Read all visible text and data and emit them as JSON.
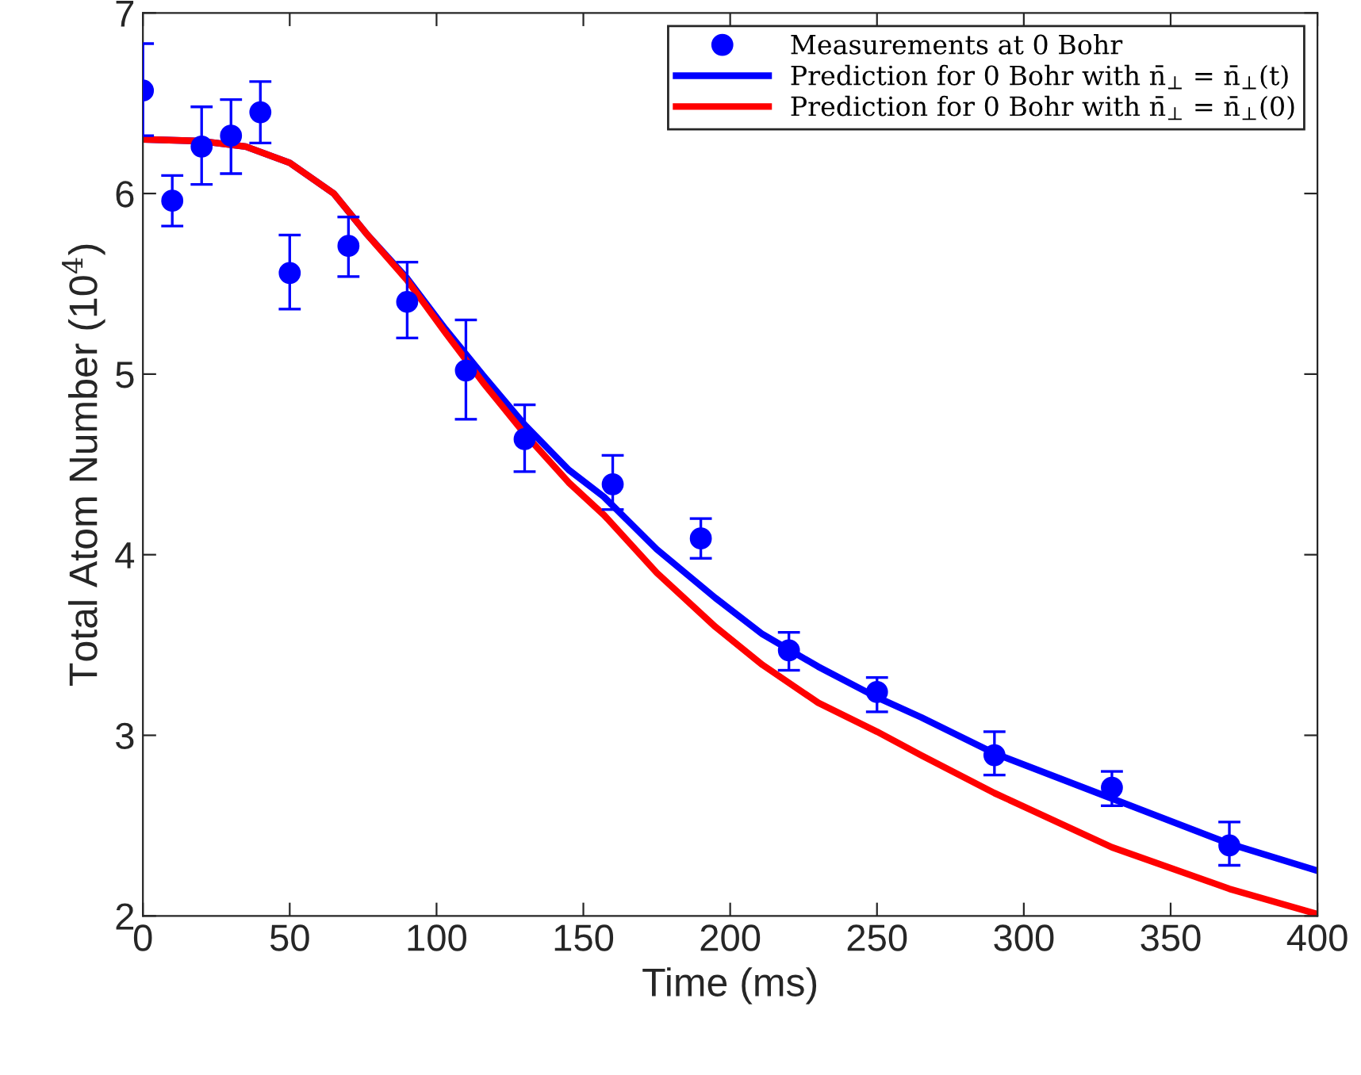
{
  "chart_data": {
    "type": "line",
    "xlabel": "Time (ms)",
    "ylabel": "Total Atom Number (10$^{4}$)",
    "xlim": [
      0,
      400
    ],
    "ylim": [
      2,
      7
    ],
    "xticks": [
      0,
      50,
      100,
      150,
      200,
      250,
      300,
      350,
      400
    ],
    "yticks": [
      2,
      3,
      4,
      5,
      6,
      7
    ],
    "grid": false,
    "legend": "top right",
    "series": [
      {
        "name": "Measurements at 0 Bohr",
        "type": "scatter",
        "marker": "circle",
        "color": "#0000ff",
        "x": [
          0,
          10,
          20,
          30,
          40,
          50,
          70,
          90,
          110,
          130,
          160,
          190,
          220,
          250,
          290,
          330,
          370
        ],
        "values": [
          6.57,
          5.96,
          6.26,
          6.32,
          6.45,
          5.56,
          5.71,
          5.4,
          5.02,
          4.64,
          4.39,
          4.09,
          3.47,
          3.24,
          2.89,
          2.71,
          2.39
        ],
        "errors": [
          [
            6.32,
            6.83
          ],
          [
            5.82,
            6.1
          ],
          [
            6.05,
            6.48
          ],
          [
            6.11,
            6.52
          ],
          [
            6.28,
            6.62
          ],
          [
            5.36,
            5.77
          ],
          [
            5.54,
            5.87
          ],
          [
            5.2,
            5.62
          ],
          [
            4.75,
            5.3
          ],
          [
            4.46,
            4.83
          ],
          [
            4.25,
            4.55
          ],
          [
            3.98,
            4.2
          ],
          [
            3.36,
            3.57
          ],
          [
            3.13,
            3.32
          ],
          [
            2.78,
            3.02
          ],
          [
            2.61,
            2.8
          ],
          [
            2.28,
            2.52
          ]
        ]
      },
      {
        "name": "Prediction for 0 Bohr with n̄$_{⊥}$ = n̄$_{⊥}$(t)",
        "line_style": "solid",
        "color": "#0000ff",
        "x": [
          0,
          20,
          35,
          50,
          65,
          76,
          90,
          103,
          116,
          130,
          145,
          157,
          175,
          195,
          211,
          230,
          250,
          265,
          290,
          330,
          370,
          400
        ],
        "values": [
          6.3,
          6.29,
          6.26,
          6.17,
          6.0,
          5.78,
          5.53,
          5.25,
          4.99,
          4.72,
          4.47,
          4.32,
          4.03,
          3.76,
          3.56,
          3.38,
          3.21,
          3.1,
          2.9,
          2.65,
          2.4,
          2.25
        ]
      },
      {
        "name": "Prediction for 0 Bohr with n̄$_{⊥}$ = n̄$_{⊥}$(0)",
        "line_style": "solid",
        "color": "#ff0000",
        "x": [
          0,
          20,
          35,
          50,
          65,
          76,
          90,
          103,
          116,
          130,
          145,
          157,
          175,
          195,
          211,
          230,
          250,
          265,
          290,
          330,
          370,
          400
        ],
        "values": [
          6.3,
          6.29,
          6.26,
          6.17,
          6.0,
          5.78,
          5.52,
          5.23,
          4.95,
          4.67,
          4.4,
          4.22,
          3.9,
          3.6,
          3.39,
          3.18,
          3.02,
          2.89,
          2.68,
          2.38,
          2.15,
          2.01
        ]
      }
    ]
  }
}
